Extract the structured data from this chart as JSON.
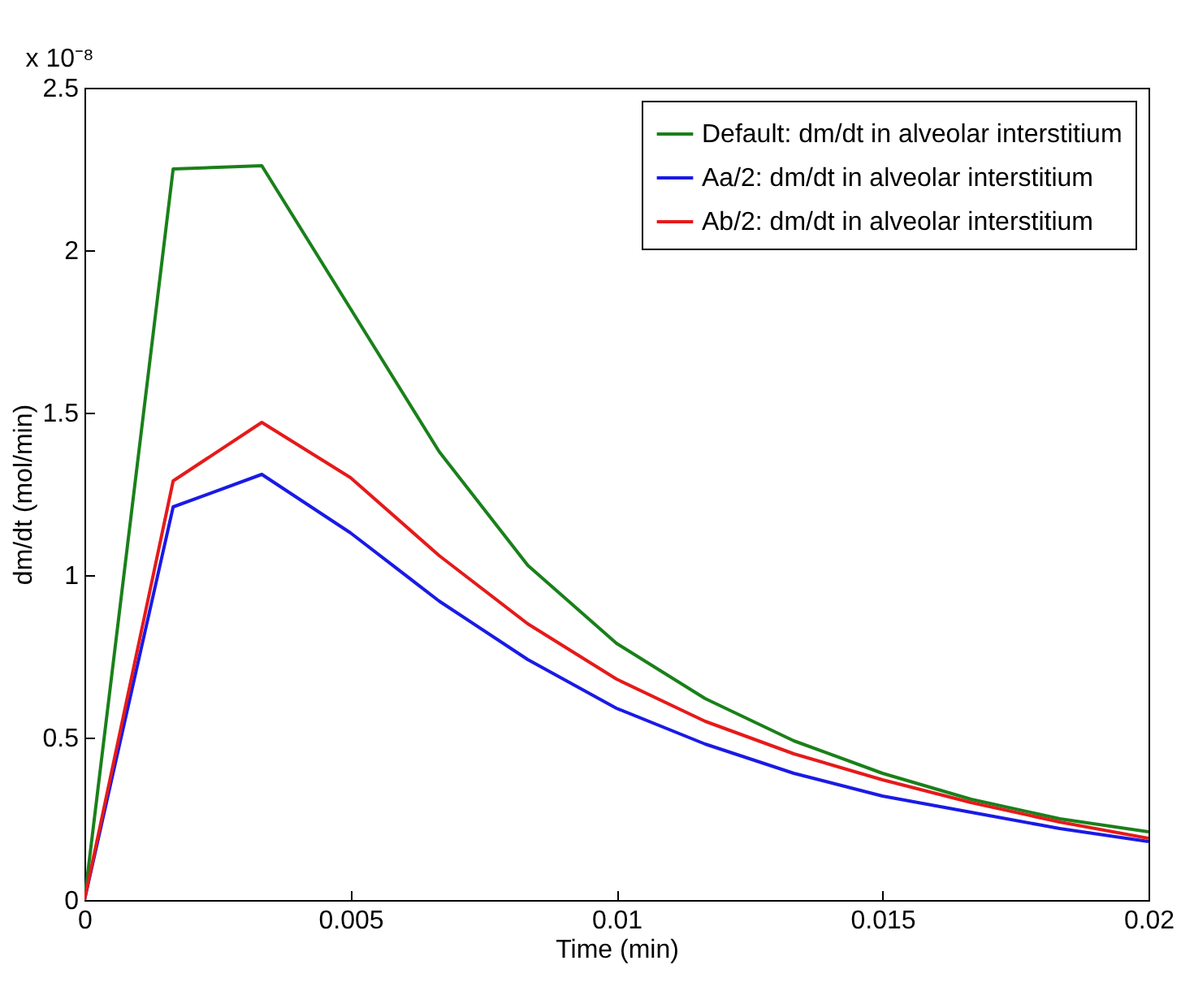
{
  "chart_data": {
    "type": "line",
    "xlabel": "Time (min)",
    "ylabel": "dm/dt (mol/min)",
    "annotations": [
      "x 10⁻⁸"
    ],
    "x": [
      0,
      0.001667,
      0.003333,
      0.005,
      0.006667,
      0.008333,
      0.01,
      0.011667,
      0.013333,
      0.015,
      0.016667,
      0.018333,
      0.02
    ],
    "series": [
      {
        "name": "Default: dm/dt in alveolar interstitium",
        "color": "#1a801a",
        "values": [
          0,
          2.25,
          2.26,
          1.82,
          1.38,
          1.03,
          0.79,
          0.62,
          0.49,
          0.39,
          0.31,
          0.25,
          0.21
        ]
      },
      {
        "name": "Aa/2: dm/dt in alveolar interstitium",
        "color": "#1a1ae6",
        "values": [
          0,
          1.21,
          1.31,
          1.13,
          0.92,
          0.74,
          0.59,
          0.48,
          0.39,
          0.32,
          0.27,
          0.22,
          0.18
        ]
      },
      {
        "name": "Ab/2: dm/dt in alveolar interstitium",
        "color": "#e61a1a",
        "values": [
          0,
          1.29,
          1.47,
          1.3,
          1.06,
          0.85,
          0.68,
          0.55,
          0.45,
          0.37,
          0.3,
          0.24,
          0.19
        ]
      }
    ],
    "xlim": [
      0,
      0.02
    ],
    "xticks": [
      0,
      0.005,
      0.01,
      0.015,
      0.02
    ],
    "ylim": [
      0,
      2.5
    ],
    "yticks": [
      0,
      0.5,
      1,
      1.5,
      2,
      2.5
    ],
    "grid": false,
    "legend": "top right",
    "marker": "none",
    "line_style": "solid"
  }
}
